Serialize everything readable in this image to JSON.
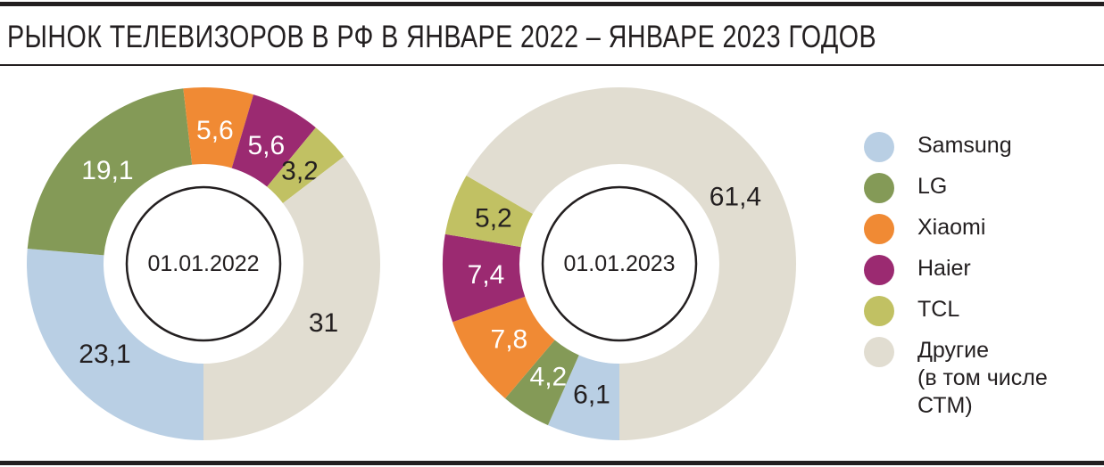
{
  "title": "РЫНОК ТЕЛЕВИЗОРОВ В РФ В ЯНВАРЕ 2022 – ЯНВАРЕ 2023 ГОДОВ",
  "chart_data": [
    {
      "type": "donut",
      "center_label": "01.01.2022",
      "categories": [
        "Samsung",
        "LG",
        "Xiaomi",
        "Haier",
        "TCL",
        "Другие"
      ],
      "values": [
        23.1,
        19.1,
        5.6,
        5.6,
        3.2,
        31
      ],
      "value_labels": [
        "23,1",
        "19,1",
        "5,6",
        "5,6",
        "3,2",
        "31"
      ]
    },
    {
      "type": "donut",
      "center_label": "01.01.2023",
      "categories": [
        "Samsung",
        "LG",
        "Xiaomi",
        "Haier",
        "TCL",
        "Другие"
      ],
      "values": [
        6.1,
        4.2,
        7.8,
        7.4,
        5.2,
        61.4
      ],
      "value_labels": [
        "6,1",
        "4,2",
        "7,8",
        "7,4",
        "5,2",
        "61,4"
      ]
    }
  ],
  "legend": [
    {
      "label": "Samsung",
      "color": "#b9cfe4"
    },
    {
      "label": "LG",
      "color": "#849a57"
    },
    {
      "label": "Xiaomi",
      "color": "#f08a34"
    },
    {
      "label": "Haier",
      "color": "#9b2a71"
    },
    {
      "label": "TCL",
      "color": "#c1c163"
    },
    {
      "label": "Другие\n(в том числе\nСТМ)",
      "color": "#e1ddd1"
    }
  ],
  "label_colors": [
    "#231f20",
    "#ffffff",
    "#ffffff",
    "#ffffff",
    "#231f20",
    "#231f20"
  ]
}
